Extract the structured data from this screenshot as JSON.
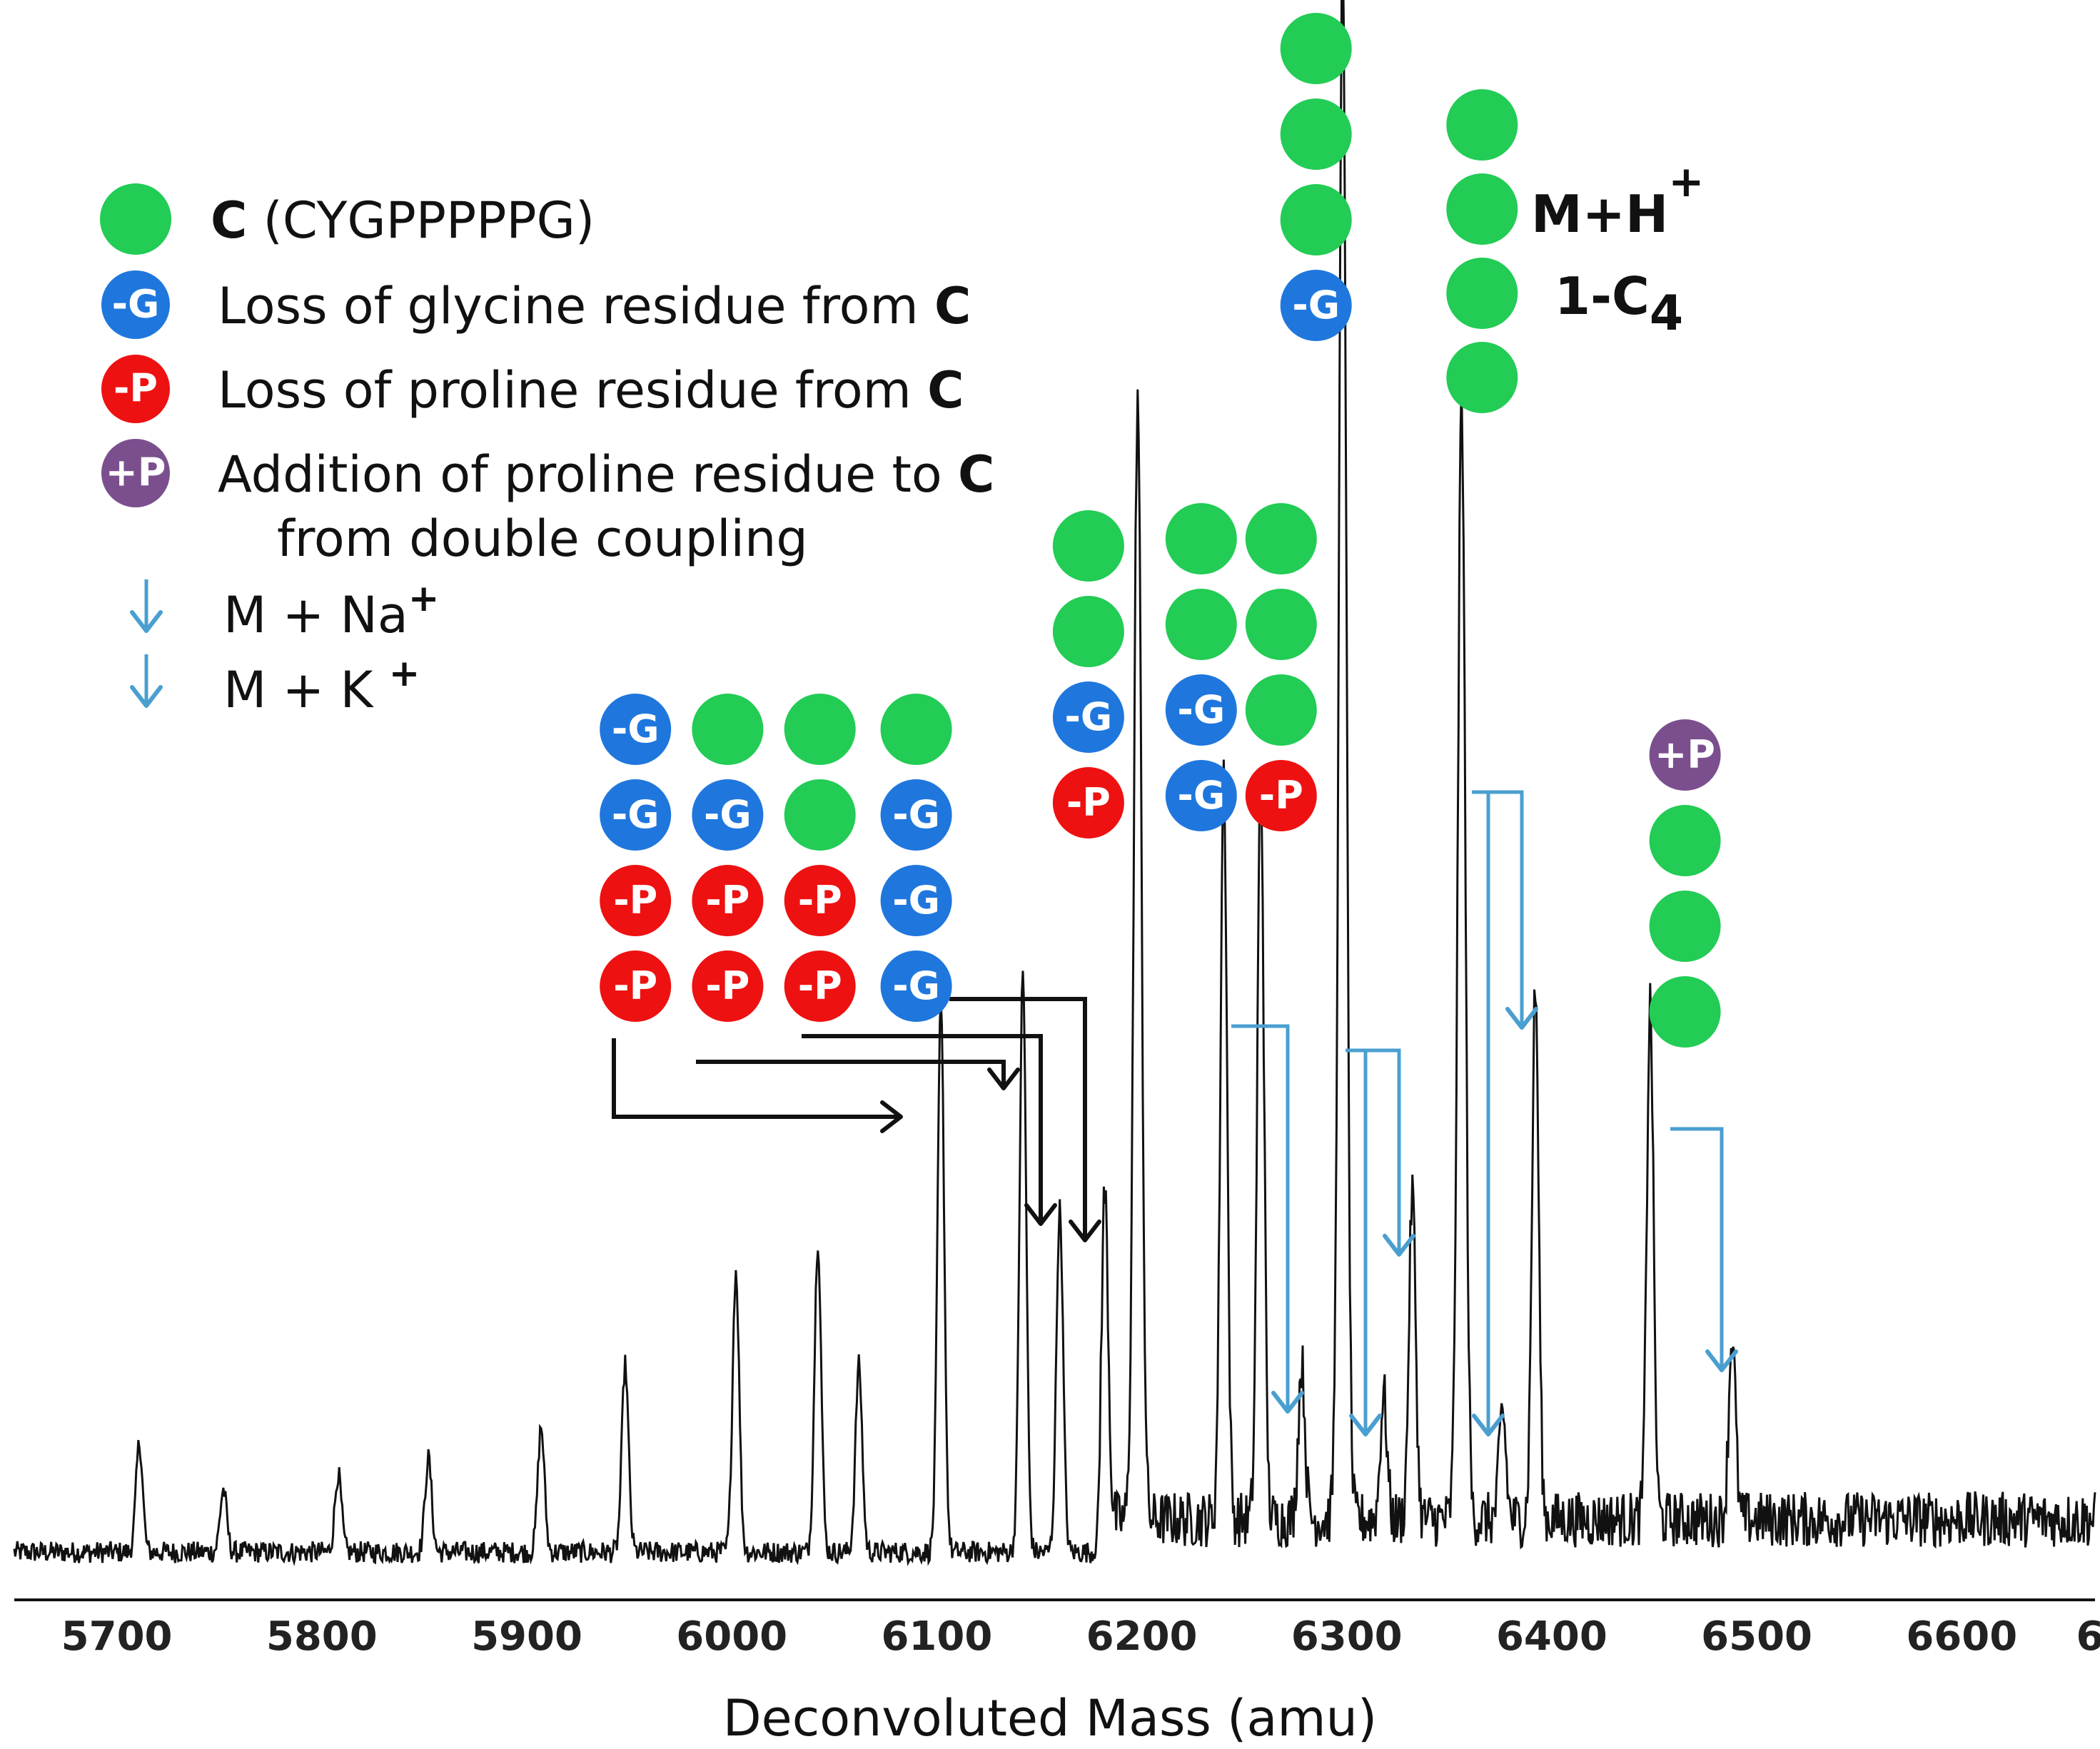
{
  "chart_data": {
    "type": "line",
    "title": "",
    "xlabel": "Deconvoluted Mass (amu)",
    "ylabel": "",
    "xlim": [
      5650,
      6665
    ],
    "ylim": [
      0,
      100
    ],
    "xticks": [
      "5700",
      "5800",
      "5900",
      "6000",
      "6100",
      "6200",
      "6300",
      "6400",
      "6500",
      "6600",
      "6"
    ],
    "colors": {
      "c": "#22cc55",
      "g": "#1f77dd",
      "p": "#ee1111",
      "plus": "#7b4f8e",
      "na_k_arrow": "#4a9fd0",
      "black_arrow": "#111111",
      "trace": "#111111"
    },
    "peaks": [
      {
        "x": 5711,
        "y": 7
      },
      {
        "x": 5752,
        "y": 4
      },
      {
        "x": 5808,
        "y": 5
      },
      {
        "x": 5852,
        "y": 6
      },
      {
        "x": 5907,
        "y": 8
      },
      {
        "x": 5948,
        "y": 12
      },
      {
        "x": 6002,
        "y": 18
      },
      {
        "x": 6042,
        "y": 20
      },
      {
        "x": 6062,
        "y": 12
      },
      {
        "x": 6102,
        "y": 35
      },
      {
        "x": 6142,
        "y": 37
      },
      {
        "x": 6160,
        "y": 22
      },
      {
        "x": 6182,
        "y": 21
      },
      {
        "x": 6198,
        "y": 72
      },
      {
        "x": 6240,
        "y": 48
      },
      {
        "x": 6258,
        "y": 48
      },
      {
        "x": 6278,
        "y": 10
      },
      {
        "x": 6298,
        "y": 100
      },
      {
        "x": 6318,
        "y": 8
      },
      {
        "x": 6332,
        "y": 21
      },
      {
        "x": 6356,
        "y": 72
      },
      {
        "x": 6376,
        "y": 7
      },
      {
        "x": 6392,
        "y": 34
      },
      {
        "x": 6448,
        "y": 33
      },
      {
        "x": 6488,
        "y": 12
      }
    ],
    "stacks": [
      {
        "x": 5953,
        "glyphs": [
          "g",
          "g",
          "p",
          "p"
        ]
      },
      {
        "x": 5998,
        "glyphs": [
          "c",
          "g",
          "p",
          "p"
        ]
      },
      {
        "x": 6043,
        "glyphs": [
          "c",
          "c",
          "p",
          "p"
        ]
      },
      {
        "x": 6090,
        "glyphs": [
          "c",
          "g",
          "g",
          "g"
        ]
      },
      {
        "x": 6174,
        "glyphs": [
          "c",
          "c",
          "g",
          "p"
        ]
      },
      {
        "x": 6229,
        "glyphs": [
          "c",
          "c",
          "g",
          "g"
        ]
      },
      {
        "x": 6268,
        "glyphs": [
          "c",
          "c",
          "c",
          "p"
        ]
      },
      {
        "x": 6285,
        "glyphs": [
          "c",
          "c",
          "c",
          "g"
        ]
      },
      {
        "x": 6366,
        "glyphs": [
          "c",
          "c",
          "c",
          "c"
        ]
      },
      {
        "x": 6465,
        "glyphs": [
          "plus",
          "c",
          "c",
          "c"
        ]
      }
    ],
    "glyph_labels": {
      "g": "-G",
      "p": "-P",
      "plus": "+P",
      "c": ""
    },
    "legend": [
      {
        "type": "circle",
        "glyph": "c",
        "text": " (CYGPPPPPG)",
        "bold_prefix": "C",
        "bold_suffix": ""
      },
      {
        "type": "circle",
        "glyph": "g",
        "text": "Loss of glycine residue from ",
        "bold_prefix": "",
        "bold_suffix": "C"
      },
      {
        "type": "circle",
        "glyph": "p",
        "text": "Loss of proline residue from ",
        "bold_prefix": "",
        "bold_suffix": "C"
      },
      {
        "type": "circle",
        "glyph": "plus",
        "text": "Addition of proline residue to ",
        "bold_prefix": "",
        "bold_suffix": "C"
      },
      {
        "type": "text",
        "text": "from double coupling"
      },
      {
        "type": "arrow",
        "text": "M + Na",
        "sup": "+"
      },
      {
        "type": "arrow",
        "text": "M + K ",
        "sup": "+"
      }
    ],
    "annotation": {
      "line1": "M+H",
      "line1_sup": "+",
      "line2": "1-C",
      "line2_sub": "4"
    },
    "black_arrows": [
      {
        "from_x": 5953,
        "to_x": 6102,
        "to_y": 35
      },
      {
        "from_x": 5992,
        "to_x": 6142,
        "to_y": 37
      },
      {
        "from_x": 6045,
        "to_x": 6160,
        "to_y": 22
      },
      {
        "from_x": 6083,
        "to_x": 6182,
        "to_y": 21
      }
    ],
    "blue_arrows": [
      {
        "from_x": 6258,
        "to_x": 6278,
        "to_y": 10
      },
      {
        "from_x": 6298,
        "to_x": 6318,
        "to_y": 8
      },
      {
        "from_x": 6318,
        "to_x": 6332,
        "to_y": 21
      },
      {
        "from_x": 6356,
        "to_x": 6376,
        "to_y": 7
      },
      {
        "from_x": 6370,
        "to_x": 6392,
        "to_y": 34
      },
      {
        "from_x": 6448,
        "to_x": 6488,
        "to_y": 12
      }
    ]
  }
}
